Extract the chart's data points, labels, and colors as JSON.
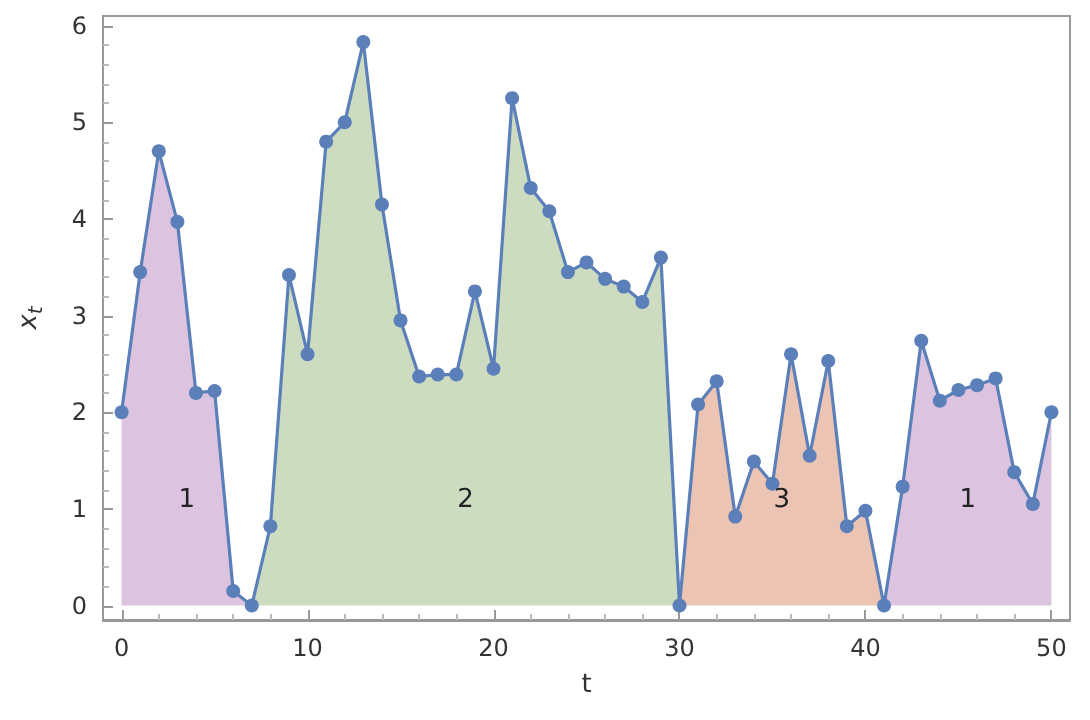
{
  "chart_data": {
    "type": "line",
    "xlabel": "t",
    "ylabel": "x$_{t}$",
    "xlim": [
      -1,
      51
    ],
    "ylim": [
      -0.15,
      6.1
    ],
    "xticks": [
      0,
      10,
      20,
      30,
      40,
      50
    ],
    "yticks": [
      0,
      1,
      2,
      3,
      4,
      5,
      6
    ],
    "grid": false,
    "series": [
      {
        "type": "area",
        "color": "#dcc4e1",
        "x": [
          0,
          1,
          2,
          3,
          4,
          5,
          6,
          7
        ],
        "values": [
          2.0,
          3.45,
          4.7,
          3.97,
          2.2,
          2.22,
          0.15,
          0.0
        ]
      },
      {
        "type": "area",
        "color": "#cddcc0",
        "x": [
          7,
          8,
          9,
          10,
          11,
          12,
          13,
          14,
          15,
          16,
          17,
          18,
          19,
          20,
          21,
          22,
          23,
          24,
          25,
          26,
          27,
          28,
          29,
          30
        ],
        "values": [
          0.0,
          0.82,
          3.42,
          2.6,
          4.8,
          5.0,
          5.83,
          4.15,
          2.95,
          2.37,
          2.39,
          2.39,
          3.25,
          2.45,
          5.25,
          4.32,
          4.08,
          3.45,
          3.55,
          3.38,
          3.3,
          3.14,
          3.6,
          0.0
        ]
      },
      {
        "type": "area",
        "color": "#ecc4b4",
        "x": [
          30,
          31,
          32,
          33,
          34,
          35,
          36,
          37,
          38,
          39,
          40,
          41
        ],
        "values": [
          0.0,
          2.08,
          2.32,
          0.92,
          1.49,
          1.26,
          2.6,
          1.55,
          2.53,
          0.82,
          0.98,
          0.0
        ]
      },
      {
        "type": "area",
        "color": "#dcc4e1",
        "x": [
          41,
          42,
          43,
          44,
          45,
          46,
          47,
          48,
          49,
          50
        ],
        "values": [
          0.0,
          1.23,
          2.74,
          2.12,
          2.23,
          2.28,
          2.35,
          1.38,
          1.05,
          2.0
        ]
      },
      {
        "color": "#5b7fb8",
        "marker": "circle",
        "line_style": "solid",
        "x": [
          0,
          1,
          2,
          3,
          4,
          5,
          6,
          7,
          8,
          9,
          10,
          11,
          12,
          13,
          14,
          15,
          16,
          17,
          18,
          19,
          20,
          21,
          22,
          23,
          24,
          25,
          26,
          27,
          28,
          29,
          30,
          31,
          32,
          33,
          34,
          35,
          36,
          37,
          38,
          39,
          40,
          41,
          42,
          43,
          44,
          45,
          46,
          47,
          48,
          49,
          50
        ],
        "values": [
          2.0,
          3.45,
          4.7,
          3.97,
          2.2,
          2.22,
          0.15,
          0.0,
          0.82,
          3.42,
          2.6,
          4.8,
          5.0,
          5.83,
          4.15,
          2.95,
          2.37,
          2.39,
          2.39,
          3.25,
          2.45,
          5.25,
          4.32,
          4.08,
          3.45,
          3.55,
          3.38,
          3.3,
          3.14,
          3.6,
          0.0,
          2.08,
          2.32,
          0.92,
          1.49,
          1.26,
          2.6,
          1.55,
          2.53,
          0.82,
          0.98,
          0.0,
          1.23,
          2.74,
          2.12,
          2.23,
          2.28,
          2.35,
          1.38,
          1.05,
          2.0
        ]
      }
    ],
    "annotations": [
      "1",
      "2",
      "3",
      "1"
    ]
  }
}
